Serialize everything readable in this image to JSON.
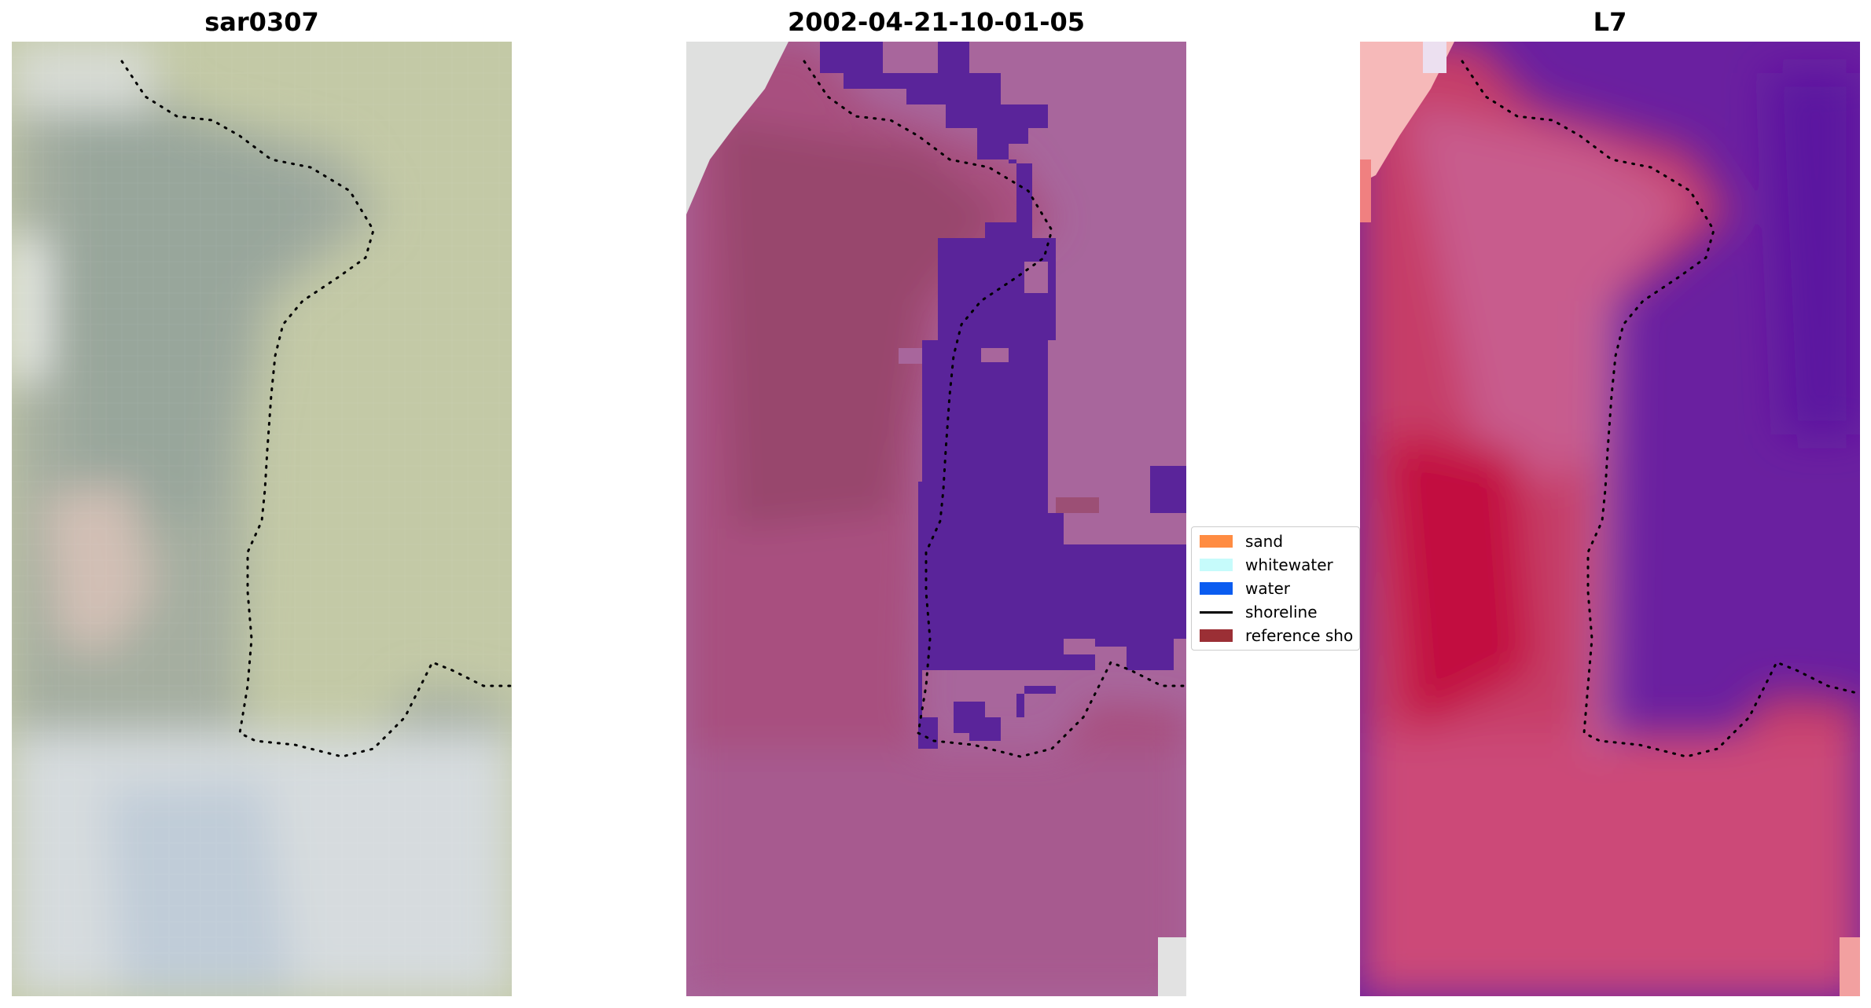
{
  "panels": {
    "left": {
      "title": "sar0307"
    },
    "middle": {
      "title": "2002-04-21-10-01-05"
    },
    "right": {
      "title": "L7"
    }
  },
  "legend": {
    "entries": [
      {
        "label": "sand",
        "color": "#ff8c42",
        "kind": "patch"
      },
      {
        "label": "whitewater",
        "color": "#c6fbfb",
        "kind": "patch"
      },
      {
        "label": "water",
        "color": "#0a5cf0",
        "kind": "patch"
      },
      {
        "label": "shoreline",
        "color": "#000000",
        "kind": "line"
      },
      {
        "label": "reference sho",
        "color": "#9b2f35",
        "kind": "patch"
      }
    ]
  },
  "colors": {
    "rgb_land": "#a6afa0",
    "rgb_water": "#c2c7a2",
    "rgb_haze": "#dcdedf",
    "class_land": "#b05886",
    "class_land_dark": "#9c4670",
    "class_water": "#5a249a",
    "class_sea_mixed": "#a8679f",
    "ndwi_land": "#c53b66",
    "ndwi_water": "#6a20a0",
    "ndwi_corner": "#f4b8b8"
  }
}
